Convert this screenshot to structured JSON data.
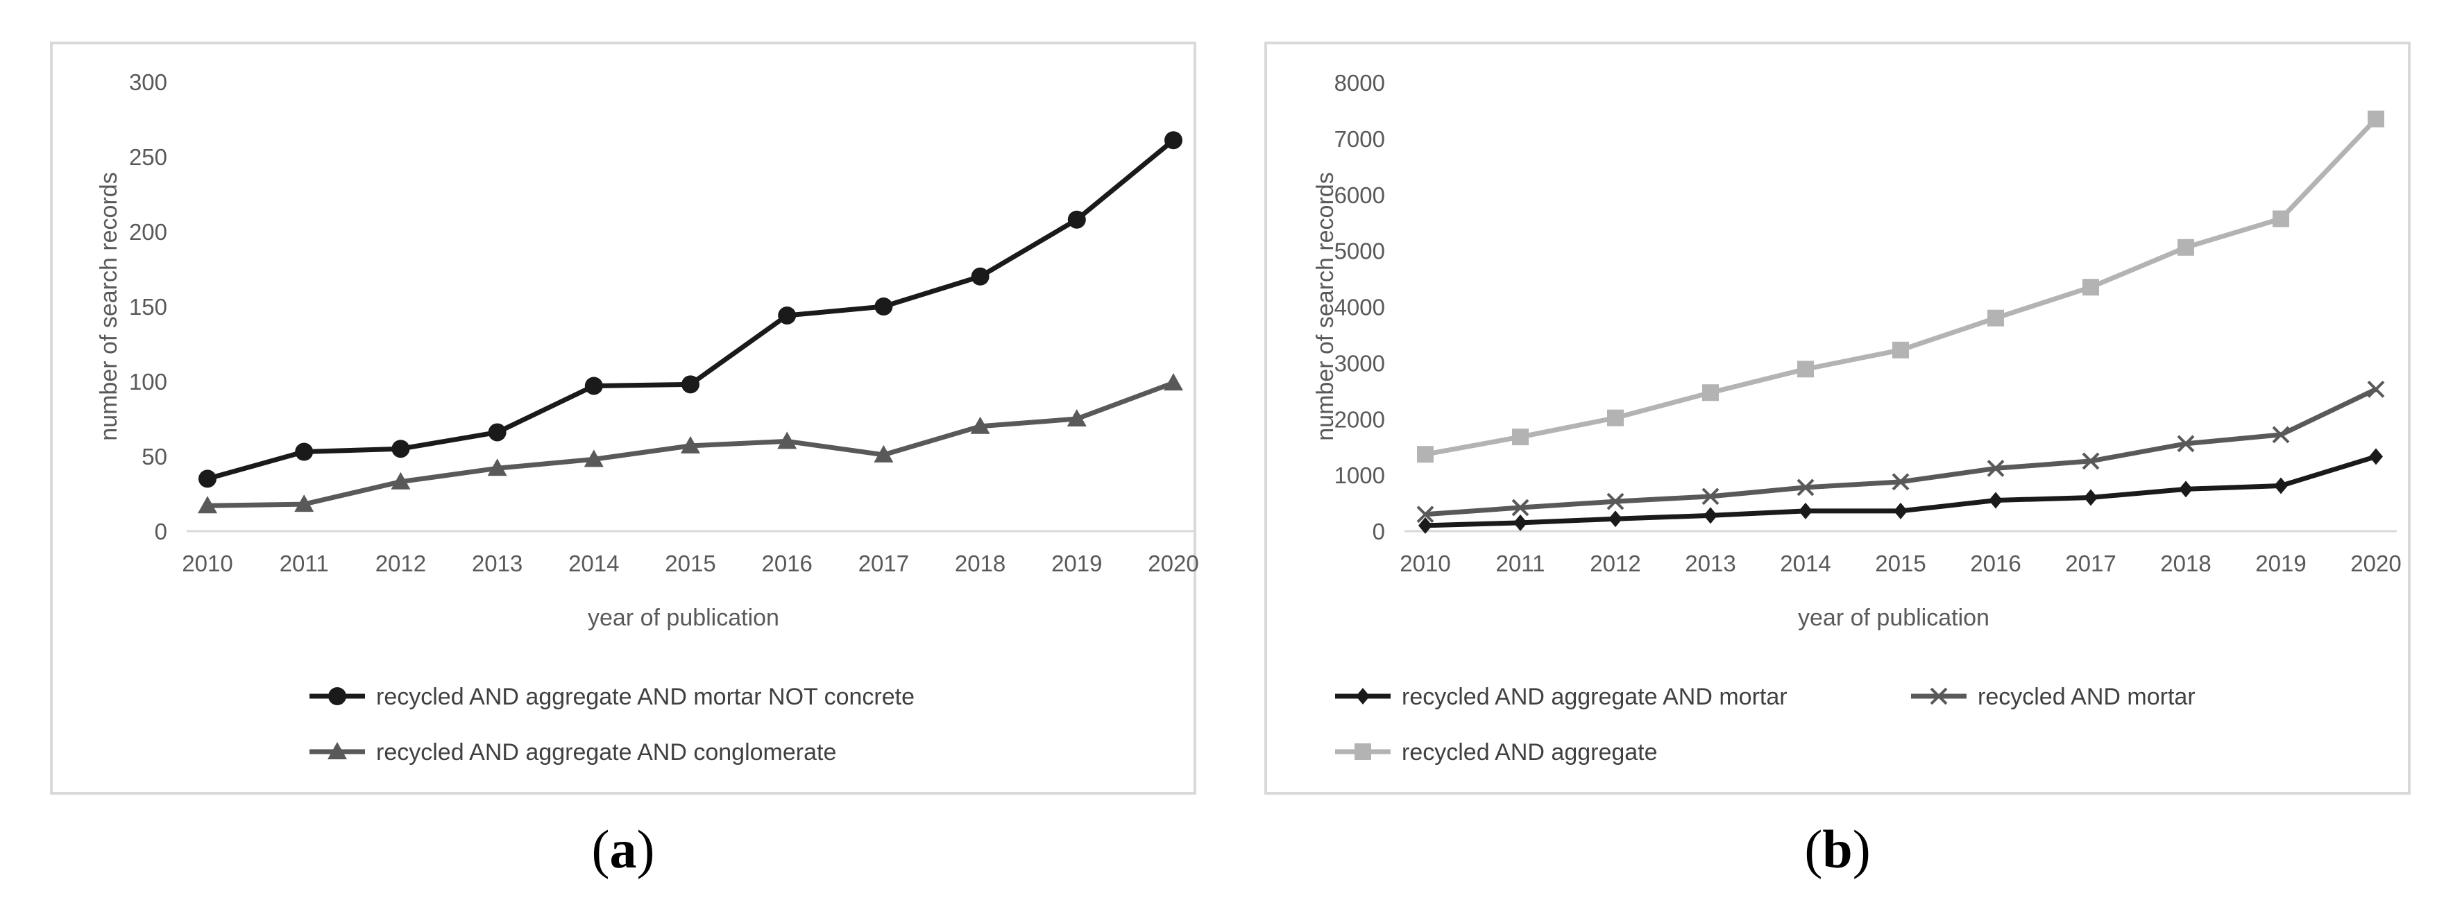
{
  "chart_data": [
    {
      "type": "line",
      "panel_label": "a",
      "xlabel": "year of publication",
      "ylabel": "number of search records",
      "x": [
        2010,
        2011,
        2012,
        2013,
        2014,
        2015,
        2016,
        2017,
        2018,
        2019,
        2020
      ],
      "ylim": [
        0,
        300
      ],
      "yticks": [
        0,
        50,
        100,
        150,
        200,
        250,
        300
      ],
      "grid": false,
      "legend_position": "bottom",
      "series": [
        {
          "name": "recycled AND aggregate AND mortar NOT concrete",
          "marker": "circle",
          "color": "#1a1a1a",
          "values": [
            35,
            53,
            55,
            66,
            97,
            98,
            144,
            150,
            170,
            208,
            261
          ]
        },
        {
          "name": "recycled AND aggregate AND conglomerate",
          "marker": "triangle",
          "color": "#595959",
          "values": [
            17,
            18,
            33,
            42,
            48,
            57,
            60,
            51,
            70,
            75,
            99
          ]
        }
      ]
    },
    {
      "type": "line",
      "panel_label": "b",
      "xlabel": "year of publication",
      "ylabel": "number of search records",
      "x": [
        2010,
        2011,
        2012,
        2013,
        2014,
        2015,
        2016,
        2017,
        2018,
        2019,
        2020
      ],
      "ylim": [
        0,
        8000
      ],
      "yticks": [
        0,
        1000,
        2000,
        3000,
        4000,
        5000,
        6000,
        7000,
        8000
      ],
      "grid": false,
      "legend_position": "bottom",
      "series": [
        {
          "name": "recycled AND aggregate AND mortar",
          "marker": "diamond",
          "color": "#1a1a1a",
          "values": [
            100,
            150,
            220,
            280,
            360,
            360,
            550,
            600,
            750,
            810,
            1330
          ]
        },
        {
          "name": "recycled AND mortar",
          "marker": "x",
          "color": "#595959",
          "values": [
            300,
            420,
            530,
            620,
            780,
            880,
            1120,
            1250,
            1560,
            1720,
            2530
          ]
        },
        {
          "name": "recycled AND aggregate",
          "marker": "square",
          "color": "#b3b3b3",
          "values": [
            1370,
            1680,
            2020,
            2470,
            2890,
            3230,
            3800,
            4350,
            5060,
            5570,
            7350
          ]
        }
      ]
    }
  ]
}
